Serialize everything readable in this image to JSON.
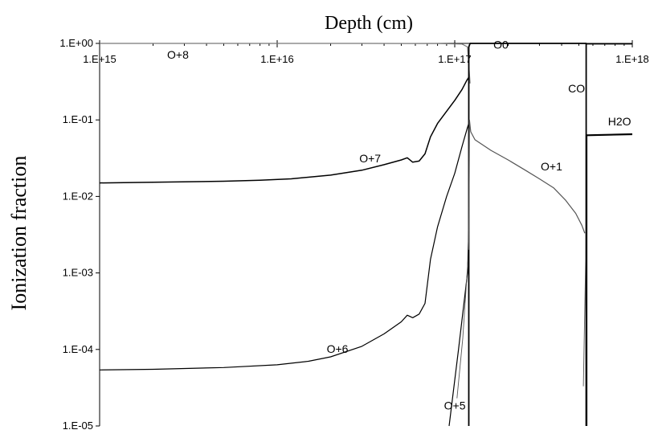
{
  "chart_data": {
    "type": "line",
    "title": "",
    "xlabel": "Depth (cm)",
    "ylabel": "Ionization fraction",
    "x_scale": "log",
    "y_scale": "log",
    "xlim": [
      1000000000000000.0,
      1e+18
    ],
    "ylim": [
      1e-05,
      1
    ],
    "x_tick_labels": [
      "1.E+15",
      "1.E+16",
      "1.E+17",
      "1.E+18"
    ],
    "x_tick_values": [
      1000000000000000.0,
      1e+16,
      1e+17,
      1e+18
    ],
    "y_tick_labels": [
      "1.E+00",
      "1.E-01",
      "1.E-02",
      "1.E-03",
      "1.E-04",
      "1.E-05"
    ],
    "y_tick_values": [
      1,
      0.1,
      0.01,
      0.001,
      0.0001,
      1e-05
    ],
    "x_axis_position": "top",
    "grid": false,
    "legend": "none",
    "series": [
      {
        "name": "O+8",
        "color": "#777777",
        "width": 1.2,
        "x": [
          1000000000000000.0,
          3e+16,
          8e+16,
          1.1e+17,
          1.18e+17,
          1.22e+17
        ],
        "y": [
          1,
          1,
          0.995,
          0.98,
          0.9,
          0.3
        ]
      },
      {
        "name": "O+7",
        "color": "#000000",
        "width": 1.5,
        "x": [
          1000000000000000.0,
          2000000000000000.0,
          5000000000000000.0,
          8000000000000000.0,
          1.2e+16,
          2e+16,
          3e+16,
          4e+16,
          5e+16,
          5.4e+16,
          5.8e+16,
          6.3e+16,
          6.8e+16,
          7.3e+16,
          8e+16,
          9e+16,
          1e+17,
          1.1e+17,
          1.17e+17,
          1.2e+17
        ],
        "y": [
          0.015,
          0.0153,
          0.0158,
          0.0163,
          0.017,
          0.019,
          0.022,
          0.026,
          0.03,
          0.032,
          0.028,
          0.029,
          0.036,
          0.06,
          0.09,
          0.13,
          0.18,
          0.25,
          0.33,
          0.36
        ]
      },
      {
        "name": "O+6",
        "color": "#000000",
        "width": 1.2,
        "x": [
          1000000000000000.0,
          2000000000000000.0,
          5000000000000000.0,
          1e+16,
          1.5e+16,
          2e+16,
          3e+16,
          4e+16,
          5e+16,
          5.4e+16,
          5.8e+16,
          6.3e+16,
          6.8e+16,
          7.3e+16,
          8e+16,
          9e+16,
          1e+17,
          1.1e+17,
          1.18e+17,
          1.2e+17
        ],
        "y": [
          5.4e-05,
          5.5e-05,
          5.8e-05,
          6.3e-05,
          7e-05,
          8e-05,
          0.00011,
          0.00016,
          0.00023,
          0.00028,
          0.00026,
          0.00029,
          0.0004,
          0.0015,
          0.004,
          0.01,
          0.02,
          0.045,
          0.08,
          0.09
        ]
      },
      {
        "name": "O+5",
        "color": "#000000",
        "width": 1.2,
        "x": [
          9.3e+16,
          1.05e+17,
          1.18e+17,
          1.2e+17
        ],
        "y": [
          1e-05,
          0.0001,
          0.001,
          0.0035
        ]
      },
      {
        "name": "O+5 (thin)",
        "color": "#555555",
        "width": 0.9,
        "x": [
          1.03e+17,
          1.11e+17,
          1.18e+17,
          1.2e+17
        ],
        "y": [
          2.3e-05,
          0.00014,
          0.0012,
          0.002
        ]
      },
      {
        "name": "O0",
        "color": "#000000",
        "width": 1.8,
        "x": [
          1.2e+17,
          1.2e+17,
          1.22e+17,
          5.5e+17,
          5.5e+17
        ],
        "y": [
          1e-05,
          0.9,
          1,
          1,
          1e-05
        ]
      },
      {
        "name": "O+1",
        "color": "#555555",
        "width": 1.2,
        "x": [
          1.2e+17,
          1.21e+17,
          1.23e+17,
          1.3e+17,
          1.6e+17,
          2e+17,
          2.5e+17,
          3e+17,
          3.6e+17,
          4.2e+17,
          4.8e+17,
          5.2e+17,
          5.4e+17
        ],
        "y": [
          0.002,
          0.1,
          0.07,
          0.055,
          0.04,
          0.03,
          0.022,
          0.017,
          0.013,
          0.009,
          0.006,
          0.0042,
          0.0033
        ]
      },
      {
        "name": "O+1 (tail)",
        "color": "#555555",
        "width": 0.9,
        "x": [
          5.3e+17,
          5.5e+17
        ],
        "y": [
          3.3e-05,
          0.0035
        ]
      },
      {
        "name": "CO",
        "color": "#000000",
        "width": 1.2,
        "x": [
          5.5e+17,
          5.55e+17,
          6e+17,
          7e+17,
          1e+18
        ],
        "y": [
          1,
          0.98,
          0.98,
          0.98,
          0.98
        ]
      },
      {
        "name": "H2O",
        "color": "#000000",
        "width": 2.2,
        "x": [
          5.52e+17,
          5.52e+17,
          1e+18
        ],
        "y": [
          1e-05,
          0.063,
          0.065
        ]
      }
    ],
    "labels": [
      {
        "text": "O+8",
        "x": 2400000000000000.0,
        "y": 0.63
      },
      {
        "text": "O+7",
        "x": 2.9e+16,
        "y": 0.028
      },
      {
        "text": "O+6",
        "x": 1.9e+16,
        "y": 9e-05
      },
      {
        "text": "O+5",
        "x": 8.7e+16,
        "y": 1.65e-05
      },
      {
        "text": "O0",
        "x": 1.65e+17,
        "y": 0.85
      },
      {
        "text": "O+1",
        "x": 3.05e+17,
        "y": 0.022
      },
      {
        "text": "CO",
        "x": 4.35e+17,
        "y": 0.23
      },
      {
        "text": "H2O",
        "x": 7.3e+17,
        "y": 0.085
      }
    ]
  }
}
